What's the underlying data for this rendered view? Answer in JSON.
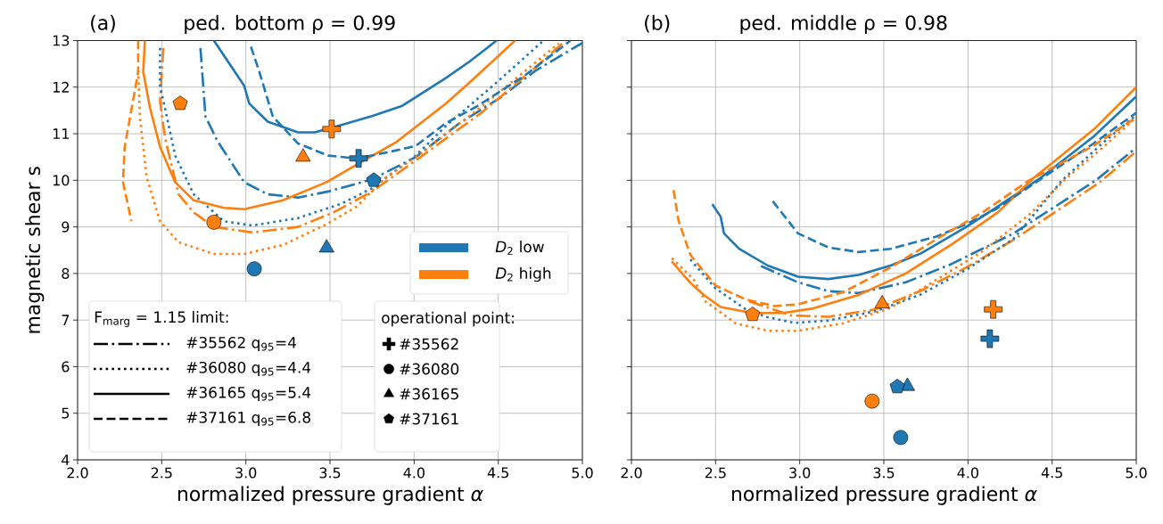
{
  "chart_data": [
    {
      "type": "line",
      "title": "ped. bottom ρ = 0.99",
      "xlabel": "normalized pressure gradient *α*",
      "ylabel": "magnetic shear s",
      "xlim": [
        2,
        5
      ],
      "ylim": [
        4,
        13
      ],
      "xticks": [
        {
          "value": 2,
          "label": "2.0"
        },
        {
          "value": 2.5,
          "label": "2.5"
        },
        {
          "value": 3,
          "label": "3.0"
        },
        {
          "value": 3.5,
          "label": "3.5"
        },
        {
          "value": 4,
          "label": "4.0"
        },
        {
          "value": 4.5,
          "label": "4.5"
        },
        {
          "value": 5,
          "label": "5.0"
        }
      ],
      "yticks": [
        4,
        5,
        6,
        7,
        8,
        9,
        10,
        11,
        12,
        13
      ],
      "grid": true,
      "annotations": [
        "(a)",
        "*D*$_{2}$ low",
        "*D*$_{2}$ high",
        "F$_{marg}$  =  1.15  limit:",
        "#35562 q$_{95}$=4",
        "#36080 q$_{95}$=4.4",
        "#36165 q$_{95}$=5.4",
        "#37161 q$_{95}$=6.8",
        "operational point:",
        "#35562",
        "#36080",
        "#36165",
        "#37161"
      ],
      "series": [
        {
          "color": "#1f77b4",
          "line_style": "dashdot",
          "x": [
            2.73,
            2.76,
            2.83,
            2.99,
            3.13,
            3.31,
            3.49,
            3.75,
            4.01,
            4.26,
            4.51,
            4.72,
            5.0
          ],
          "values": [
            12.84,
            11.37,
            10.85,
            9.96,
            9.7,
            9.63,
            9.76,
            10.02,
            10.5,
            11.2,
            11.77,
            12.35,
            12.95
          ]
        },
        {
          "color": "#ff7f0e",
          "line_style": "dashdot",
          "x": [
            2.51,
            2.49,
            2.52,
            2.6,
            2.69,
            2.81,
            3.04,
            3.31,
            3.52,
            3.75,
            4.0,
            4.4,
            4.72,
            4.9
          ],
          "values": [
            12.84,
            11.69,
            10.9,
            9.7,
            9.31,
            9.0,
            8.88,
            9.0,
            9.31,
            9.76,
            10.4,
            11.45,
            12.42,
            13.0
          ]
        },
        {
          "color": "#1f77b4",
          "line_style": "dotted",
          "x": [
            2.49,
            2.49,
            2.53,
            2.58,
            2.69,
            2.87,
            3.04,
            3.31,
            3.57,
            3.75,
            4.01,
            4.19,
            4.49,
            4.76
          ],
          "values": [
            12.84,
            12.03,
            11.37,
            10.53,
            9.7,
            9.12,
            9.03,
            9.19,
            9.5,
            9.83,
            10.53,
            11.17,
            12.1,
            12.97
          ]
        },
        {
          "color": "#ff7f0e",
          "line_style": "dotted",
          "x": [
            2.36,
            2.37,
            2.41,
            2.49,
            2.6,
            2.81,
            2.99,
            3.22,
            3.48,
            3.66,
            3.82,
            4.05,
            4.4,
            4.86
          ],
          "values": [
            12.36,
            11.37,
            10.08,
            9.12,
            8.67,
            8.42,
            8.42,
            8.61,
            9.06,
            9.44,
            10.03,
            10.6,
            11.58,
            12.94
          ]
        },
        {
          "color": "#1f77b4",
          "line_style": "solid",
          "x": [
            2.81,
            2.99,
            3.02,
            3.13,
            3.31,
            3.41,
            3.54,
            3.75,
            3.93,
            4.19,
            4.33,
            4.49
          ],
          "values": [
            13.0,
            12.03,
            11.65,
            11.26,
            11.03,
            11.03,
            11.16,
            11.38,
            11.6,
            12.2,
            12.55,
            13.0
          ]
        },
        {
          "color": "#ff7f0e",
          "line_style": "solid",
          "x": [
            2.4,
            2.39,
            2.43,
            2.49,
            2.58,
            2.69,
            2.87,
            2.99,
            3.22,
            3.48,
            3.66,
            3.89,
            4.19,
            4.33,
            4.6
          ],
          "values": [
            13.0,
            12.33,
            11.56,
            10.72,
            9.96,
            9.57,
            9.41,
            9.38,
            9.57,
            9.96,
            10.34,
            10.81,
            11.65,
            12.1,
            13.0
          ]
        },
        {
          "color": "#1f77b4",
          "line_style": "dashed",
          "x": [
            3.03,
            3.08,
            3.16,
            3.31,
            3.49,
            3.66,
            3.84,
            4.01,
            4.19,
            4.37,
            4.65,
            4.93
          ],
          "values": [
            12.87,
            12.33,
            11.37,
            10.79,
            10.53,
            10.47,
            10.6,
            10.74,
            11.23,
            11.58,
            12.23,
            13.0
          ]
        },
        {
          "color": "#ff7f0e",
          "line_style": "dashed",
          "x": [
            2.36,
            2.36,
            2.28,
            2.27,
            2.32
          ],
          "values": [
            13.0,
            12.33,
            10.72,
            9.96,
            9.12
          ]
        },
        {
          "type": "scatter",
          "marker": "cross",
          "color": "#ff7f0e",
          "x": [
            3.51
          ],
          "values": [
            11.1
          ]
        },
        {
          "type": "scatter",
          "marker": "cross",
          "color": "#1f77b4",
          "x": [
            3.67
          ],
          "values": [
            10.47
          ]
        },
        {
          "type": "scatter",
          "marker": "circle",
          "color": "#ff7f0e",
          "x": [
            2.81
          ],
          "values": [
            9.1
          ]
        },
        {
          "type": "scatter",
          "marker": "circle",
          "color": "#1f77b4",
          "x": [
            3.05
          ],
          "values": [
            8.1
          ]
        },
        {
          "type": "scatter",
          "marker": "triangle",
          "color": "#ff7f0e",
          "x": [
            3.34
          ],
          "values": [
            10.5
          ]
        },
        {
          "type": "scatter",
          "marker": "triangle",
          "color": "#1f77b4",
          "x": [
            3.48
          ],
          "values": [
            8.55
          ]
        },
        {
          "type": "scatter",
          "color": "#ff7f0e",
          "x": [
            2.61
          ],
          "values": [
            11.65
          ]
        },
        {
          "type": "scatter",
          "color": "#1f77b4",
          "x": [
            3.76
          ],
          "values": [
            10.0
          ]
        }
      ]
    },
    {
      "type": "line",
      "title": "ped. middle ρ = 0.98",
      "xlabel": "normalized pressure gradient *α*",
      "xlim": [
        2,
        5
      ],
      "ylim": [
        4,
        13
      ],
      "xticks": [
        {
          "value": 2,
          "label": "2.0"
        },
        {
          "value": 2.5,
          "label": "2.5"
        },
        {
          "value": 3,
          "label": "3.0"
        },
        {
          "value": 3.5,
          "label": "3.5"
        },
        {
          "value": 4,
          "label": "4.0"
        },
        {
          "value": 4.5,
          "label": "4.5"
        },
        {
          "value": 5,
          "label": "5.0"
        }
      ],
      "yticks": [
        4,
        5,
        6,
        7,
        8,
        9,
        10,
        11,
        12,
        13
      ],
      "grid": true,
      "tick_labels": "x",
      "annotations": [
        "(b)"
      ],
      "series": [
        {
          "color": "#1f77b4",
          "line_style": "dashdot",
          "x": [
            2.77,
            2.99,
            3.17,
            3.35,
            3.63,
            3.9,
            4.27,
            4.76,
            5.0
          ],
          "values": [
            8.16,
            7.81,
            7.62,
            7.58,
            7.81,
            8.2,
            8.86,
            10.0,
            10.7
          ]
        },
        {
          "color": "#ff7f0e",
          "line_style": "dashdot",
          "x": [
            2.7,
            2.95,
            3.17,
            3.45,
            3.72,
            3.99,
            4.27,
            4.78,
            5.0
          ],
          "values": [
            7.4,
            7.1,
            7.07,
            7.23,
            7.63,
            8.13,
            8.72,
            9.95,
            10.62
          ]
        },
        {
          "color": "#1f77b4",
          "line_style": "dotted",
          "x": [
            2.35,
            2.5,
            2.68,
            2.81,
            2.97,
            3.17,
            3.45,
            3.72,
            3.99,
            4.27,
            4.56,
            4.8,
            5.0
          ],
          "values": [
            8.3,
            7.68,
            7.23,
            7.06,
            6.94,
            6.99,
            7.19,
            7.55,
            8.08,
            8.74,
            10.0,
            10.8,
            11.4
          ]
        },
        {
          "color": "#ff7f0e",
          "line_style": "dotted",
          "x": [
            2.24,
            2.37,
            2.44,
            2.62,
            2.81,
            2.99,
            3.26,
            3.54,
            3.81,
            4.08,
            4.36,
            4.59,
            4.8,
            5.0
          ],
          "values": [
            8.33,
            7.87,
            7.4,
            6.93,
            6.77,
            6.77,
            6.93,
            7.26,
            7.86,
            8.46,
            9.25,
            10.06,
            10.7,
            11.35
          ]
        },
        {
          "color": "#1f77b4",
          "line_style": "solid",
          "x": [
            2.48,
            2.53,
            2.55,
            2.64,
            2.81,
            2.99,
            3.17,
            3.35,
            3.54,
            3.72,
            3.99,
            4.17,
            4.43,
            4.75,
            5.0
          ],
          "values": [
            9.49,
            9.22,
            8.86,
            8.53,
            8.17,
            7.93,
            7.88,
            7.97,
            8.17,
            8.43,
            9.0,
            9.42,
            10.05,
            10.95,
            11.8
          ]
        },
        {
          "color": "#ff7f0e",
          "line_style": "solid",
          "x": [
            2.24,
            2.35,
            2.43,
            2.53,
            2.72,
            2.9,
            3.08,
            3.35,
            3.63,
            3.91,
            4.18,
            4.39,
            4.75,
            5.0
          ],
          "values": [
            8.26,
            7.8,
            7.54,
            7.28,
            7.15,
            7.15,
            7.25,
            7.54,
            8.0,
            8.64,
            9.32,
            10.05,
            11.1,
            12.0
          ]
        },
        {
          "color": "#1f77b4",
          "line_style": "dashed",
          "x": [
            2.84,
            2.99,
            3.17,
            3.35,
            3.54,
            3.81,
            3.99,
            4.17,
            4.36,
            4.75,
            5.0
          ],
          "values": [
            9.55,
            8.86,
            8.56,
            8.46,
            8.53,
            8.79,
            9.06,
            9.39,
            9.85,
            10.8,
            11.45
          ]
        },
        {
          "color": "#ff7f0e",
          "line_style": "dashed",
          "x": [
            2.25,
            2.28,
            2.35,
            2.5,
            2.68,
            2.85,
            2.99,
            3.26,
            3.54,
            3.81,
            4.09,
            4.36,
            4.75,
            5.0
          ],
          "values": [
            9.79,
            9.13,
            8.4,
            7.74,
            7.44,
            7.3,
            7.34,
            7.6,
            8.13,
            8.73,
            9.32,
            9.99,
            10.75,
            11.35
          ]
        },
        {
          "type": "scatter",
          "marker": "cross",
          "color": "#ff7f0e",
          "x": [
            4.15
          ],
          "values": [
            7.23
          ]
        },
        {
          "type": "scatter",
          "marker": "cross",
          "color": "#1f77b4",
          "x": [
            4.13
          ],
          "values": [
            6.6
          ]
        },
        {
          "type": "scatter",
          "marker": "circle",
          "color": "#ff7f0e",
          "x": [
            3.43
          ],
          "values": [
            5.26
          ]
        },
        {
          "type": "scatter",
          "marker": "circle",
          "color": "#1f77b4",
          "x": [
            3.6
          ],
          "values": [
            4.48
          ]
        },
        {
          "type": "scatter",
          "marker": "triangle",
          "color": "#ff7f0e",
          "x": [
            3.49
          ],
          "values": [
            7.35
          ]
        },
        {
          "type": "scatter",
          "marker": "triangle",
          "color": "#1f77b4",
          "x": [
            3.64
          ],
          "values": [
            5.58
          ]
        },
        {
          "type": "scatter",
          "color": "#ff7f0e",
          "x": [
            2.72
          ],
          "values": [
            7.12
          ]
        },
        {
          "type": "scatter",
          "color": "#1f77b4",
          "x": [
            3.58
          ],
          "values": [
            5.57
          ]
        }
      ]
    }
  ]
}
